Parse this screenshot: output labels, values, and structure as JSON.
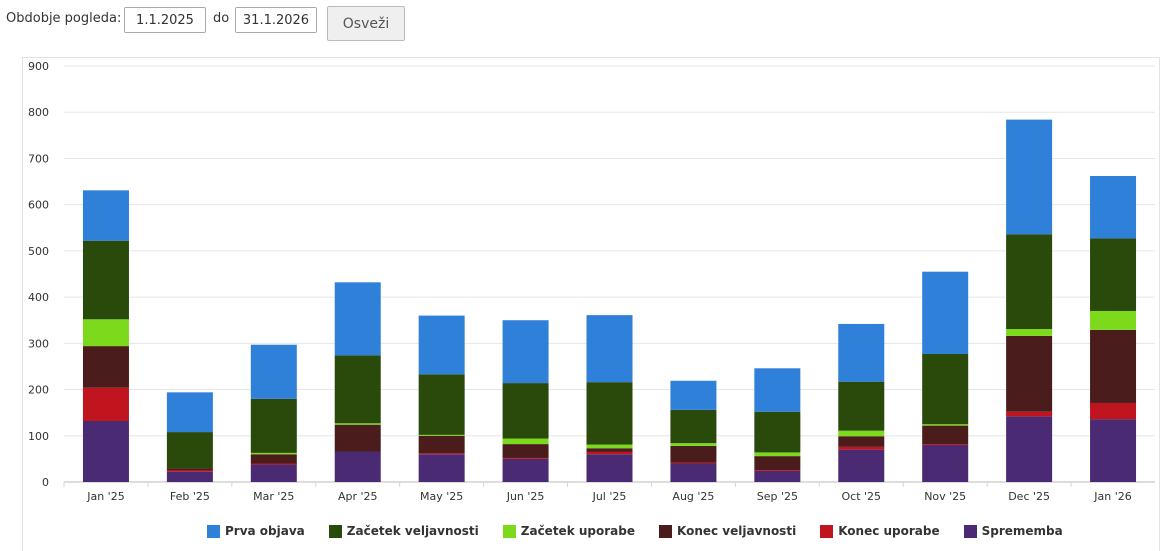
{
  "filter": {
    "label": "Obdobje pogleda:",
    "from_value": "1.1.2025",
    "to_label": "do",
    "to_value": "31.1.2026",
    "refresh_label": "Osveži"
  },
  "chart_data": {
    "type": "bar",
    "stacked": true,
    "categories": [
      "Jan '25",
      "Feb '25",
      "Mar '25",
      "Apr '25",
      "May '25",
      "Jun '25",
      "Jul '25",
      "Aug '25",
      "Sep '25",
      "Oct '25",
      "Nov '25",
      "Dec '25",
      "Jan '26"
    ],
    "ylim": [
      0,
      900
    ],
    "yticks": [
      0,
      100,
      200,
      300,
      400,
      500,
      600,
      700,
      800,
      900
    ],
    "grid": true,
    "legend_position": "bottom",
    "series": [
      {
        "name": "Sprememba",
        "color": "#4b2a74",
        "values": [
          132,
          22,
          38,
          66,
          60,
          50,
          60,
          40,
          24,
          70,
          80,
          142,
          136
        ]
      },
      {
        "name": "Konec uporabe",
        "color": "#c0141e",
        "values": [
          72,
          3,
          2,
          0,
          2,
          2,
          5,
          2,
          2,
          6,
          2,
          10,
          35
        ]
      },
      {
        "name": "Konec veljavnosti",
        "color": "#4a1c1c",
        "values": [
          90,
          5,
          20,
          58,
          38,
          30,
          8,
          36,
          30,
          23,
          40,
          164,
          158
        ]
      },
      {
        "name": "Začetek uporabe",
        "color": "#7dd91c",
        "values": [
          58,
          0,
          3,
          3,
          2,
          12,
          8,
          6,
          8,
          12,
          3,
          15,
          41
        ]
      },
      {
        "name": "Začetek veljavnosti",
        "color": "#294a0a",
        "values": [
          170,
          78,
          117,
          147,
          131,
          120,
          135,
          72,
          88,
          106,
          152,
          205,
          157
        ]
      },
      {
        "name": "Prva objava",
        "color": "#2f80d9",
        "values": [
          109,
          86,
          117,
          158,
          127,
          136,
          145,
          63,
          94,
          125,
          178,
          248,
          135
        ]
      }
    ],
    "legend_order": [
      "Prva objava",
      "Začetek veljavnosti",
      "Začetek uporabe",
      "Konec veljavnosti",
      "Konec uporabe",
      "Sprememba"
    ]
  }
}
